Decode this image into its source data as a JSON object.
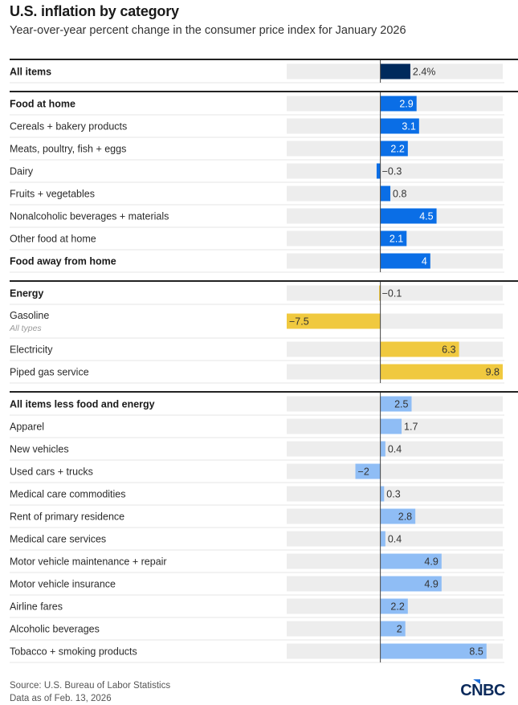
{
  "header": {
    "title": "U.S. inflation by category",
    "subtitle": "Year-over-year percent change in the consumer price index for January 2026"
  },
  "footer": {
    "source": "Source: U.S. Bureau of Labor Statistics",
    "date": "Data as of Feb. 13, 2026",
    "logo": "CNBC"
  },
  "colors": {
    "all_items": "#002a5c",
    "food": "#0a6ee6",
    "energy": "#f0c93f",
    "core": "#8fbdf5",
    "track": "#ededed",
    "divider_thick": "#222222",
    "divider_thin": "#e6e6e6",
    "axis": "#444444"
  },
  "chart_data": {
    "type": "bar",
    "orientation": "horizontal",
    "title": "U.S. inflation by category",
    "subtitle": "Year-over-year percent change in the consumer price index for January 2026",
    "xlabel": "",
    "ylabel": "",
    "xlim": [
      -7.5,
      9.8
    ],
    "unit": "%",
    "groups": [
      {
        "name": "all",
        "color_key": "all_items",
        "rows": [
          {
            "label": "All items",
            "value": 2.4,
            "display": "2.4%",
            "bold": true
          }
        ]
      },
      {
        "name": "food",
        "color_key": "food",
        "rows": [
          {
            "label": "Food at home",
            "value": 2.9,
            "display": "2.9",
            "bold": true
          },
          {
            "label": "Cereals + bakery products",
            "value": 3.1,
            "display": "3.1"
          },
          {
            "label": "Meats, poultry, fish + eggs",
            "value": 2.2,
            "display": "2.2"
          },
          {
            "label": "Dairy",
            "value": -0.3,
            "display": "−0.3"
          },
          {
            "label": "Fruits + vegetables",
            "value": 0.8,
            "display": "0.8"
          },
          {
            "label": "Nonalcoholic beverages + materials",
            "value": 4.5,
            "display": "4.5"
          },
          {
            "label": "Other food at home",
            "value": 2.1,
            "display": "2.1"
          },
          {
            "label": "Food away from home",
            "value": 4,
            "display": "4",
            "bold": true
          }
        ]
      },
      {
        "name": "energy",
        "color_key": "energy",
        "rows": [
          {
            "label": "Energy",
            "value": -0.1,
            "display": "−0.1",
            "bold": true
          },
          {
            "label": "Gasoline",
            "sublabel": "All types",
            "value": -7.5,
            "display": "−7.5"
          },
          {
            "label": "Electricity",
            "value": 6.3,
            "display": "6.3"
          },
          {
            "label": "Piped gas service",
            "value": 9.8,
            "display": "9.8"
          }
        ]
      },
      {
        "name": "core",
        "color_key": "core",
        "rows": [
          {
            "label": "All items less food and energy",
            "value": 2.5,
            "display": "2.5",
            "bold": true
          },
          {
            "label": "Apparel",
            "value": 1.7,
            "display": "1.7"
          },
          {
            "label": "New vehicles",
            "value": 0.4,
            "display": "0.4"
          },
          {
            "label": "Used cars + trucks",
            "value": -2,
            "display": "−2"
          },
          {
            "label": "Medical care commodities",
            "value": 0.3,
            "display": "0.3"
          },
          {
            "label": "Rent of primary residence",
            "value": 2.8,
            "display": "2.8"
          },
          {
            "label": "Medical care services",
            "value": 0.4,
            "display": "0.4"
          },
          {
            "label": "Motor vehicle maintenance + repair",
            "value": 4.9,
            "display": "4.9"
          },
          {
            "label": "Motor vehicle insurance",
            "value": 4.9,
            "display": "4.9"
          },
          {
            "label": "Airline fares",
            "value": 2.2,
            "display": "2.2"
          },
          {
            "label": "Alcoholic beverages",
            "value": 2,
            "display": "2"
          },
          {
            "label": "Tobacco + smoking products",
            "value": 8.5,
            "display": "8.5"
          }
        ]
      }
    ]
  }
}
